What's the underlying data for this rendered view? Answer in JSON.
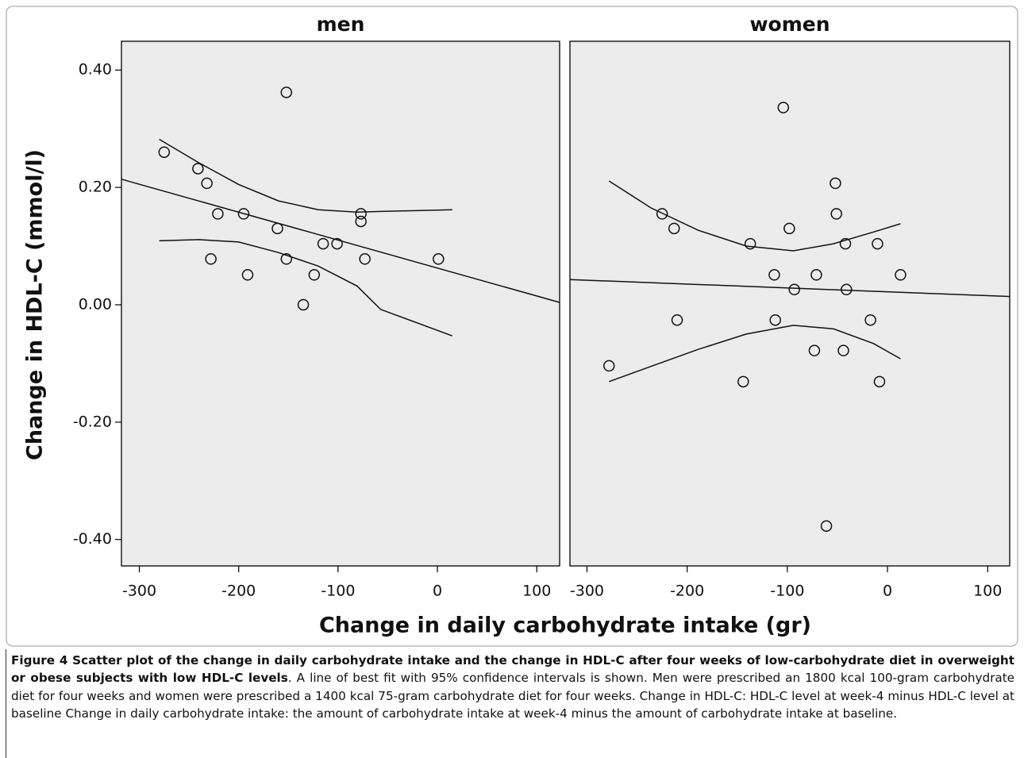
{
  "chart_data": [
    {
      "type": "scatter",
      "title": "men",
      "x": [
        -275,
        -241,
        -232,
        -221,
        -195,
        -228,
        -191,
        -161,
        -152,
        -152,
        -135,
        -124,
        -115,
        -101,
        -77,
        -77,
        -73,
        1
      ],
      "y": [
        0.26,
        0.232,
        0.207,
        0.155,
        0.155,
        0.078,
        0.051,
        0.13,
        0.362,
        0.078,
        0.0,
        0.051,
        0.104,
        0.104,
        0.155,
        0.142,
        0.078,
        0.078
      ],
      "fit_line": {
        "x": [
          -318,
          123
        ],
        "y": [
          0.214,
          0.004
        ]
      },
      "ci_upper": {
        "x": [
          -280,
          -240,
          -200,
          -160,
          -120,
          -81,
          -57,
          15
        ],
        "y": [
          0.282,
          0.242,
          0.205,
          0.177,
          0.162,
          0.158,
          0.159,
          0.162
        ]
      },
      "ci_lower": {
        "x": [
          -280,
          -240,
          -200,
          -160,
          -120,
          -81,
          -57,
          15
        ],
        "y": [
          0.109,
          0.111,
          0.107,
          0.089,
          0.066,
          0.032,
          -0.008,
          -0.053
        ]
      },
      "xlim": [
        -318,
        123
      ],
      "ylim": [
        -0.445,
        0.449
      ],
      "xticks": [
        -300,
        -200,
        -100,
        0,
        100
      ],
      "yticks": [
        {
          "value": 0.4,
          "label": "0.40"
        },
        {
          "value": 0.2,
          "label": "0.20"
        },
        {
          "value": 0.0,
          "label": "0.00"
        },
        {
          "value": -0.2,
          "label": "-0.20"
        },
        {
          "value": -0.4,
          "label": "-0.40"
        }
      ]
    },
    {
      "type": "scatter",
      "title": "women",
      "x": [
        -278,
        -225,
        -213,
        -210,
        -144,
        -137,
        -113,
        -112,
        -104,
        -98,
        -93,
        -73,
        -71,
        -61,
        -52,
        -51,
        -44,
        -42,
        -41,
        -17,
        -10,
        -8,
        13
      ],
      "y": [
        -0.104,
        0.155,
        0.13,
        -0.026,
        -0.131,
        0.104,
        0.051,
        -0.026,
        0.336,
        0.13,
        0.026,
        -0.078,
        0.051,
        -0.377,
        0.207,
        0.155,
        -0.078,
        0.104,
        0.026,
        -0.026,
        0.104,
        -0.131,
        0.051
      ],
      "fit_line": {
        "x": [
          -317,
          122
        ],
        "y": [
          0.043,
          0.014
        ]
      },
      "ci_upper": {
        "x": [
          -278,
          -236,
          -189,
          -141,
          -94,
          -54,
          -14,
          13
        ],
        "y": [
          0.211,
          0.165,
          0.127,
          0.1,
          0.092,
          0.104,
          0.124,
          0.138
        ]
      },
      "ci_lower": {
        "x": [
          -278,
          -236,
          -189,
          -141,
          -94,
          -54,
          -14,
          13
        ],
        "y": [
          -0.131,
          -0.105,
          -0.076,
          -0.05,
          -0.035,
          -0.041,
          -0.066,
          -0.092
        ]
      },
      "xlim": [
        -317,
        122
      ],
      "ylim": [
        -0.445,
        0.449
      ],
      "xticks": [
        -300,
        -200,
        -100,
        0,
        100
      ]
    }
  ],
  "axis_labels": {
    "y": "Change in HDL-C (mmol/l)",
    "x": "Change in daily carbohydrate intake (gr)"
  },
  "caption": {
    "title": "Figure 4 Scatter plot of the change in daily carbohydrate intake and the change in HDL-C after four weeks of low-carbohydrate diet in overweight or obese subjects with low HDL-C levels",
    "text": ". A line of best fit with 95% confidence intervals is shown. Men were prescribed an 1800 kcal 100-gram carbohydrate diet for four weeks and women were prescribed a 1400 kcal 75-gram carbohydrate diet for four weeks. Change in HDL-C: HDL-C level at week-4 minus HDL-C level at baseline Change in daily carbohydrate intake: the amount of carbohydrate intake at week-4 minus the amount of carbohydrate intake at baseline."
  }
}
